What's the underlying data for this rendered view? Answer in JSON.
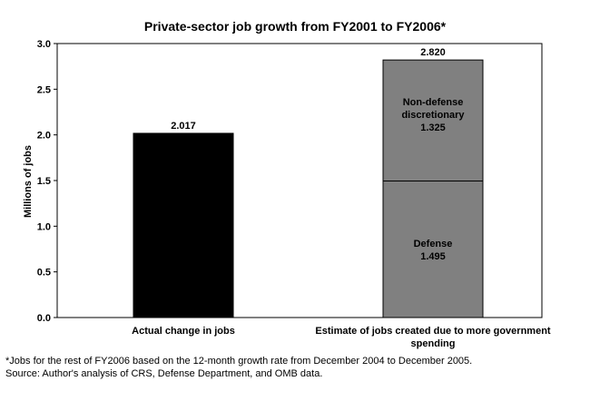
{
  "chart_data": {
    "type": "bar",
    "title": "Private-sector job growth from FY2001 to FY2006*",
    "ylabel": "Millions of jobs",
    "xlabel": "",
    "ylim": [
      0,
      3.0
    ],
    "yticks": [
      "0.0",
      "0.5",
      "1.0",
      "1.5",
      "2.0",
      "2.5",
      "3.0"
    ],
    "grid": false,
    "stacked": true,
    "categories": [
      "Actual change in jobs",
      "Estimate of jobs created due to more government spending"
    ],
    "series": [
      {
        "label": "Actual change in jobs",
        "values": [
          2.017,
          null
        ],
        "color": "#000000",
        "value_label": "2.017"
      },
      {
        "label": "Defense",
        "values": [
          null,
          1.495
        ],
        "color": "#808080",
        "value_label": "1.495"
      },
      {
        "label": "Non-defense discretionary",
        "values": [
          null,
          1.325
        ],
        "color": "#808080",
        "value_label": "1.325"
      }
    ],
    "totals": [
      {
        "category": "Actual change in jobs",
        "value": 2.017,
        "label": "2.017"
      },
      {
        "category": "Estimate of jobs created due to more government spending",
        "value": 2.82,
        "label": "2.820"
      }
    ]
  },
  "footnotes": {
    "note": "*Jobs for the rest of FY2006 based on the 12-month growth rate from December 2004 to December 2005.",
    "source": "Source:  Author's analysis of CRS, Defense Department, and OMB data."
  }
}
